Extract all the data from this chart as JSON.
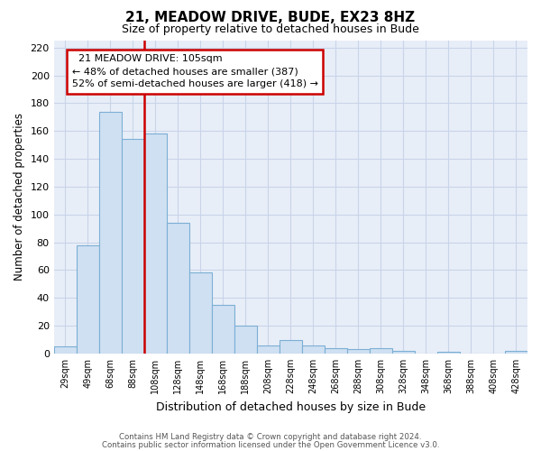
{
  "title": "21, MEADOW DRIVE, BUDE, EX23 8HZ",
  "subtitle": "Size of property relative to detached houses in Bude",
  "xlabel": "Distribution of detached houses by size in Bude",
  "ylabel": "Number of detached properties",
  "bar_labels": [
    "29sqm",
    "49sqm",
    "68sqm",
    "88sqm",
    "108sqm",
    "128sqm",
    "148sqm",
    "168sqm",
    "188sqm",
    "208sqm",
    "228sqm",
    "248sqm",
    "268sqm",
    "288sqm",
    "308sqm",
    "328sqm",
    "348sqm",
    "368sqm",
    "388sqm",
    "408sqm",
    "428sqm"
  ],
  "bar_values": [
    5,
    78,
    174,
    154,
    158,
    94,
    58,
    35,
    20,
    6,
    10,
    6,
    4,
    3,
    4,
    2,
    0,
    1,
    0,
    0,
    2
  ],
  "bar_color": "#cfe0f2",
  "bar_edge_color": "#7bafd4",
  "vline_color": "#cc0000",
  "ylim": [
    0,
    225
  ],
  "yticks": [
    0,
    20,
    40,
    60,
    80,
    100,
    120,
    140,
    160,
    180,
    200,
    220
  ],
  "annotation_title": "21 MEADOW DRIVE: 105sqm",
  "annotation_line1": "← 48% of detached houses are smaller (387)",
  "annotation_line2": "52% of semi-detached houses are larger (418) →",
  "footer1": "Contains HM Land Registry data © Crown copyright and database right 2024.",
  "footer2": "Contains public sector information licensed under the Open Government Licence v3.0.",
  "bg_color": "#ffffff",
  "plot_bg_color": "#e8eef8",
  "grid_color": "#c8d4e8",
  "annotation_box_color": "#ffffff",
  "annotation_box_edge": "#cc0000",
  "title_fontsize": 11,
  "subtitle_fontsize": 9
}
